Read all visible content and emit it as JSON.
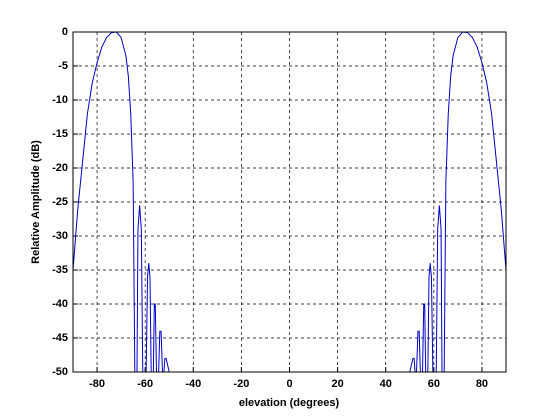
{
  "chart_data": {
    "type": "line",
    "x_label": "elevation (degrees)",
    "y_label": "Relative Amplitude (dB)",
    "xlim": [
      -90,
      90
    ],
    "xticks": [
      -80,
      -60,
      -40,
      -20,
      0,
      20,
      40,
      60,
      80
    ],
    "ylim": [
      -50,
      0
    ],
    "yticks": [
      0,
      -5,
      -10,
      -15,
      -20,
      -25,
      -30,
      -35,
      -40,
      -45,
      -50
    ],
    "grid": true,
    "color": "#0000cc",
    "x": [
      -90,
      -88,
      -86,
      -84,
      -82,
      -80,
      -78,
      -76,
      -74,
      -72,
      -70,
      -68,
      -67,
      -66,
      -65,
      -64.3,
      -63.4,
      -63,
      -62.3,
      -61.6,
      -61,
      -59.6,
      -59,
      -58.5,
      -58,
      -57.5,
      -56.6,
      -56.2,
      -55.8,
      -55.3,
      -54.4,
      -53.9,
      -53.4,
      -52.8,
      -52.2,
      -51.8,
      -51.3,
      -50,
      50,
      51.3,
      51.8,
      52.2,
      52.8,
      53.4,
      53.9,
      54.4,
      55.3,
      55.8,
      56.2,
      56.6,
      57.5,
      58,
      58.5,
      59,
      59.6,
      61,
      61.6,
      62.3,
      63,
      63.4,
      64.3,
      65,
      66,
      67,
      68,
      70,
      72,
      74,
      76,
      78,
      80,
      82,
      84,
      86,
      88,
      90
    ],
    "values": [
      -35,
      -26,
      -19,
      -12,
      -7.5,
      -4.5,
      -2.2,
      -0.8,
      -0.1,
      0,
      -0.8,
      -3.5,
      -6.5,
      -12,
      -22,
      -50,
      -50,
      -29,
      -25.5,
      -29,
      -50,
      -50,
      -36,
      -34,
      -36,
      -50,
      -50,
      -40,
      -40,
      -50,
      -50,
      -44,
      -44,
      -50,
      -50,
      -48,
      -48,
      -50,
      -50,
      -48,
      -48,
      -50,
      -50,
      -44,
      -44,
      -50,
      -50,
      -40,
      -40,
      -50,
      -50,
      -36,
      -34,
      -36,
      -50,
      -50,
      -29,
      -25.5,
      -29,
      -50,
      -50,
      -22,
      -12,
      -6.5,
      -3.5,
      -0.8,
      0,
      -0.1,
      -0.8,
      -2.2,
      -4.5,
      -7.5,
      -12,
      -19,
      -26,
      -35
    ]
  }
}
